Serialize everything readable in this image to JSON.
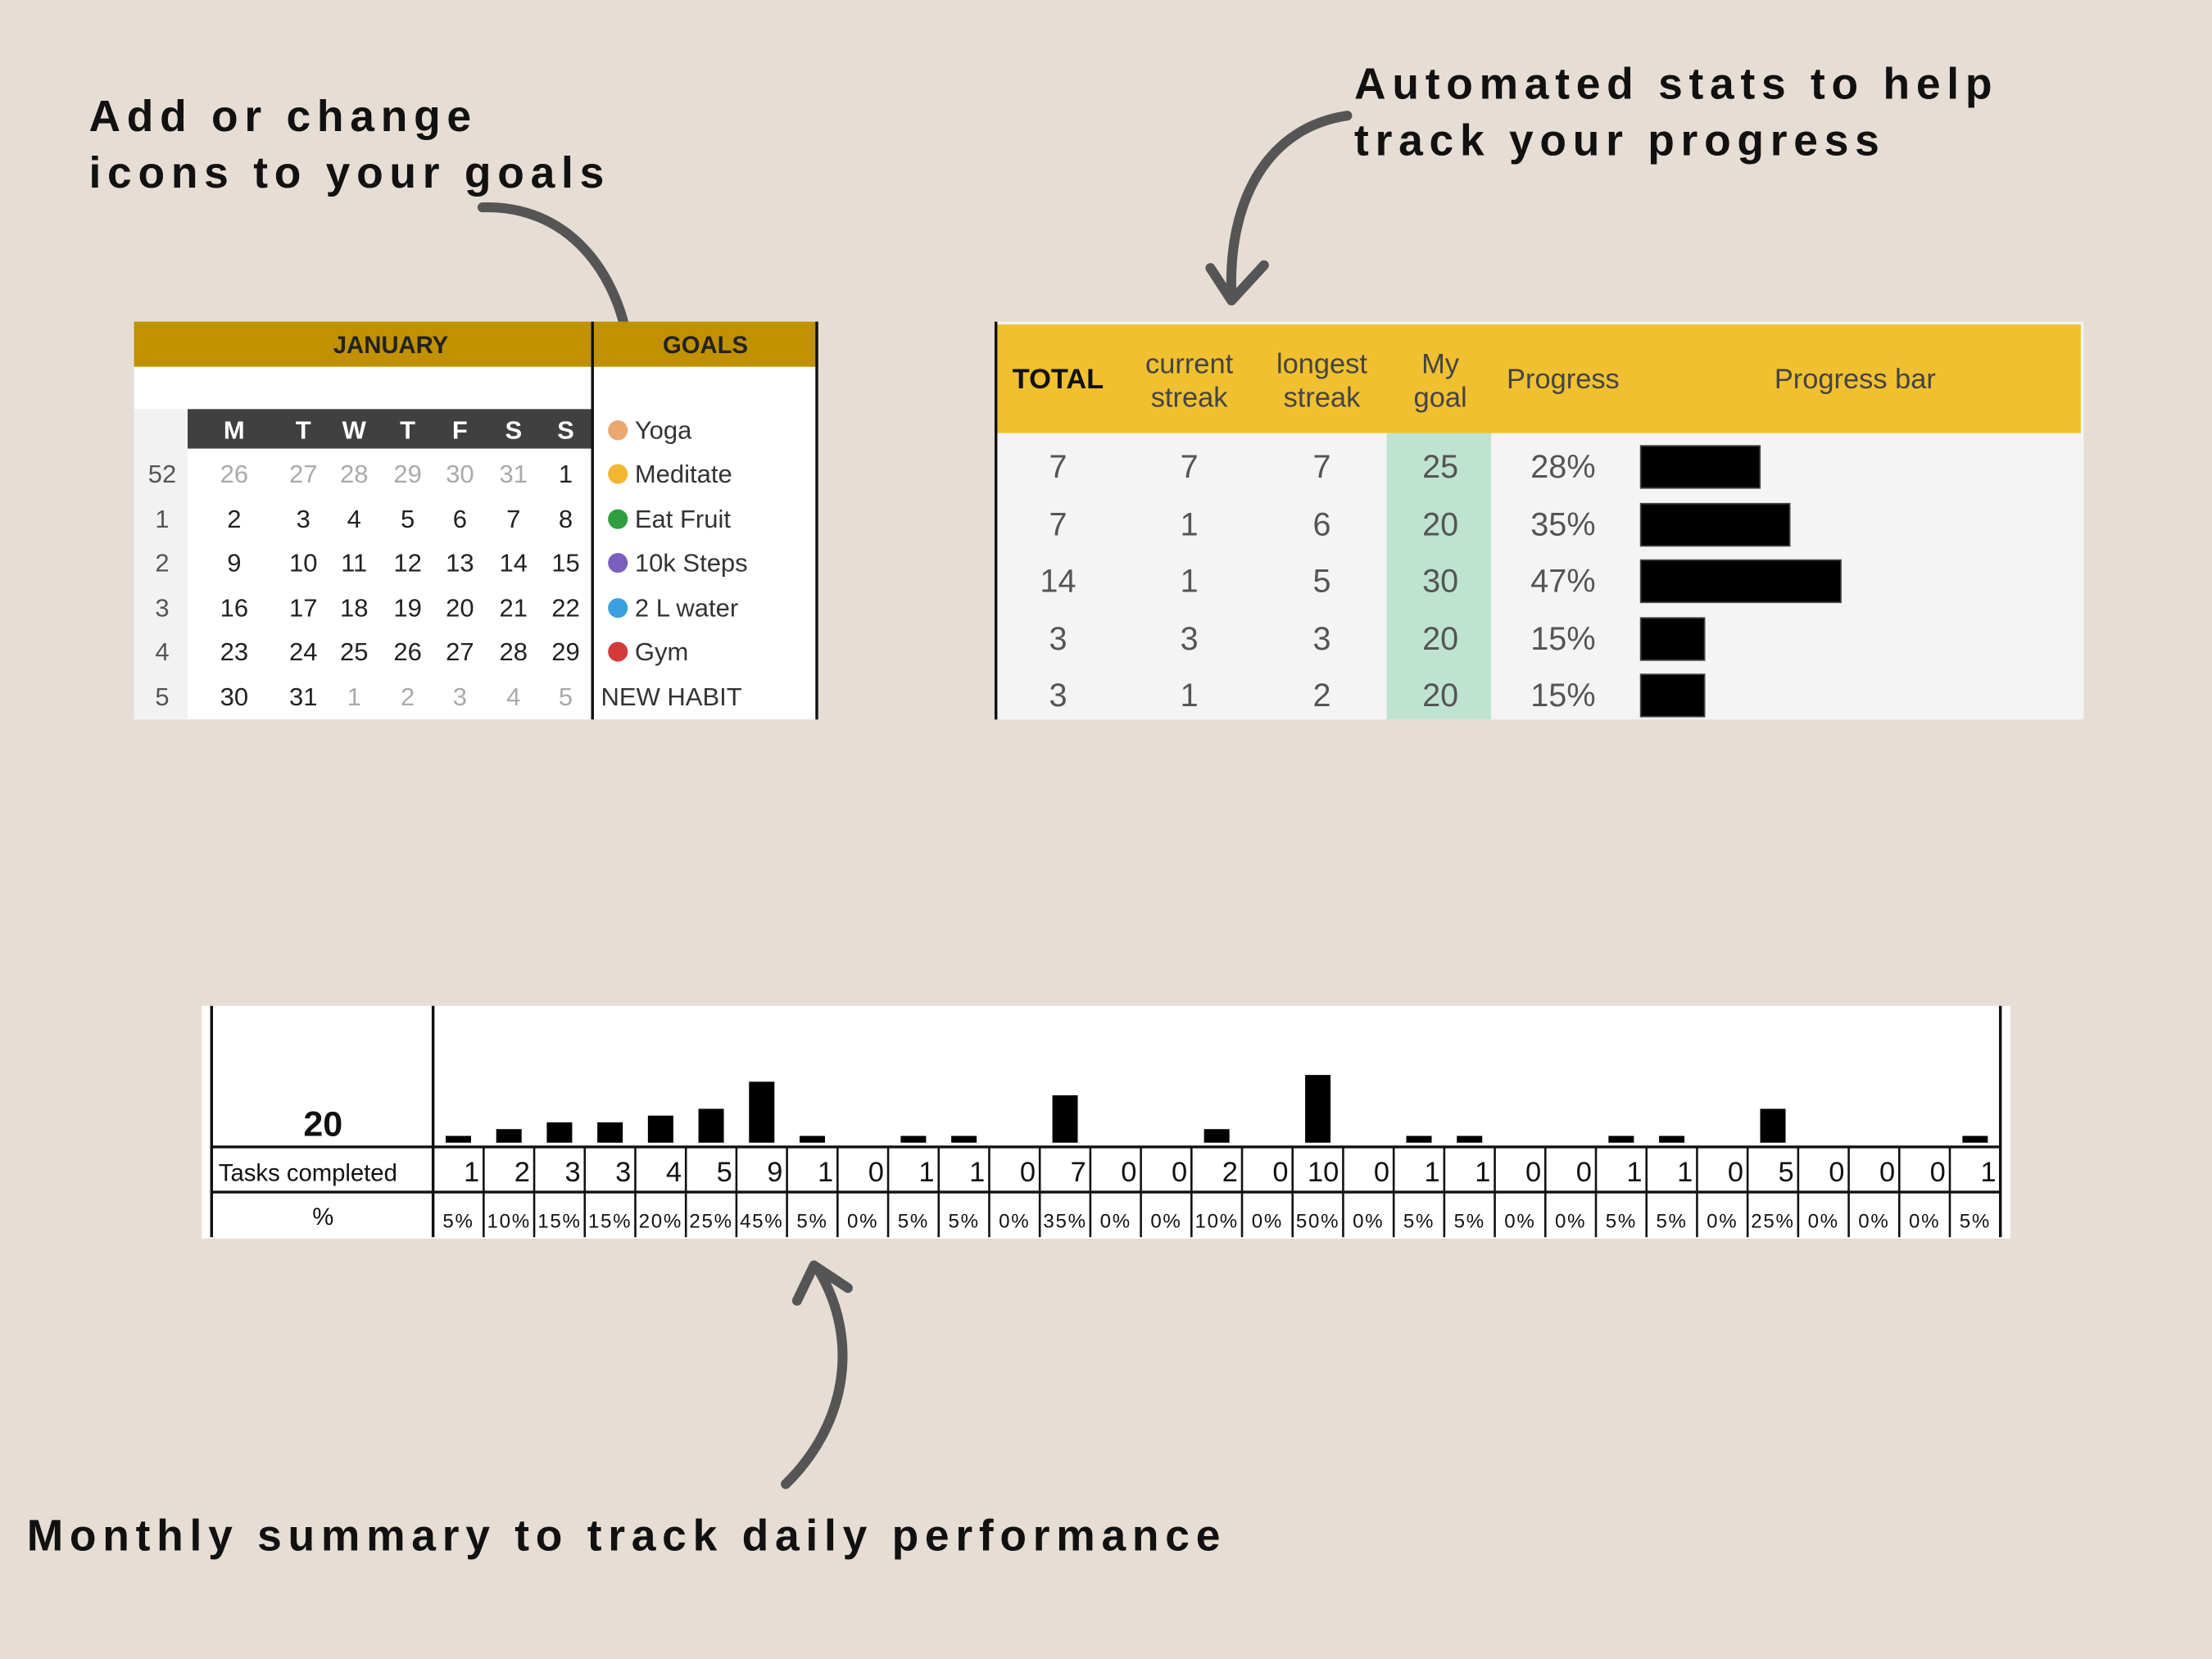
{
  "captions": {
    "goals": [
      "Add or change",
      "icons to your goals"
    ],
    "stats": [
      "Automated stats to help",
      "track your progress"
    ],
    "summary": "Monthly summary to track daily performance"
  },
  "calendar": {
    "month": "JANUARY",
    "goals_header": "GOALS",
    "weekdays": [
      "M",
      "T",
      "W",
      "T",
      "F",
      "S",
      "S"
    ],
    "weeks": [
      {
        "week": 52,
        "days": [
          26,
          27,
          28,
          29,
          30,
          31,
          1
        ]
      },
      {
        "week": 1,
        "days": [
          2,
          3,
          4,
          5,
          6,
          7,
          8
        ]
      },
      {
        "week": 2,
        "days": [
          9,
          10,
          11,
          12,
          13,
          14,
          15
        ]
      },
      {
        "week": 3,
        "days": [
          16,
          17,
          18,
          19,
          20,
          21,
          22
        ]
      },
      {
        "week": 4,
        "days": [
          23,
          24,
          25,
          26,
          27,
          28,
          29
        ]
      },
      {
        "week": 5,
        "days": [
          30,
          31,
          1,
          2,
          3,
          4,
          5
        ]
      }
    ],
    "goals": [
      "Yoga",
      "Meditate",
      "Eat Fruit",
      "10k Steps",
      "2 L water",
      "Gym",
      "NEW HABIT"
    ]
  },
  "stats": {
    "headers": [
      [
        "TOTAL"
      ],
      [
        "current",
        "streak"
      ],
      [
        "longest",
        "streak"
      ],
      [
        "My",
        "goal"
      ],
      [
        "Progress"
      ],
      [
        "Progress bar"
      ]
    ],
    "rows": [
      {
        "total": 7,
        "current_streak": 7,
        "longest_streak": 7,
        "goal": 25,
        "progress": {
          "value": 28,
          "label": "28%"
        }
      },
      {
        "total": 7,
        "current_streak": 1,
        "longest_streak": 6,
        "goal": 20,
        "progress": {
          "value": 35,
          "label": "35%"
        }
      },
      {
        "total": 14,
        "current_streak": 1,
        "longest_streak": 5,
        "goal": 30,
        "progress": {
          "value": 47,
          "label": "47%"
        }
      },
      {
        "total": 3,
        "current_streak": 3,
        "longest_streak": 3,
        "goal": 20,
        "progress": {
          "value": 15,
          "label": "15%"
        }
      },
      {
        "total": 3,
        "current_streak": 1,
        "longest_streak": 2,
        "goal": 20,
        "progress": {
          "value": 15,
          "label": "15%"
        }
      }
    ]
  },
  "summary": {
    "total": 20,
    "tasks_label": "Tasks completed",
    "percent_label": "%",
    "tasks": [
      1,
      2,
      3,
      3,
      4,
      5,
      9,
      1,
      0,
      1,
      1,
      0,
      7,
      0,
      0,
      2,
      0,
      10,
      0,
      1,
      1,
      0,
      0,
      1,
      1,
      0,
      5,
      0,
      0,
      0,
      1
    ],
    "percents": [
      "5%",
      "10%",
      "15%",
      "15%",
      "20%",
      "25%",
      "45%",
      "5%",
      "0%",
      "5%",
      "5%",
      "0%",
      "35%",
      "0%",
      "0%",
      "10%",
      "0%",
      "50%",
      "0%",
      "5%",
      "5%",
      "0%",
      "0%",
      "5%",
      "5%",
      "0%",
      "25%",
      "0%",
      "0%",
      "0%",
      "5%"
    ]
  }
}
